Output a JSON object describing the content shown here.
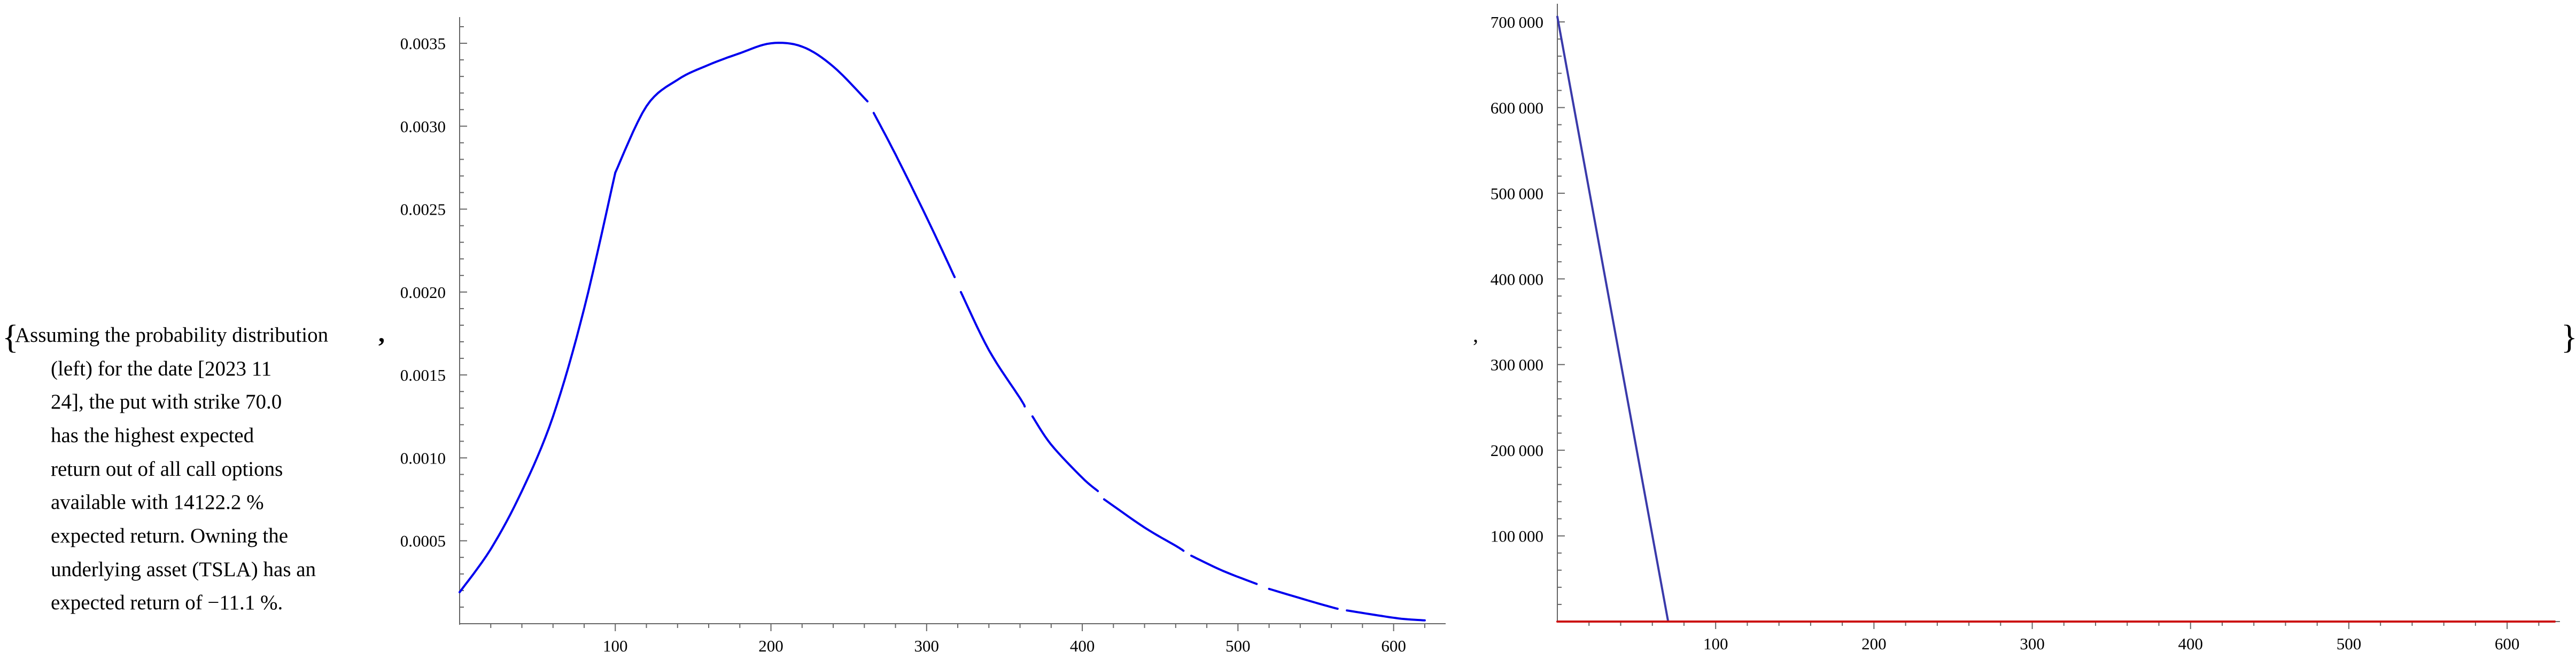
{
  "output": {
    "open_brace": "{",
    "close_brace": "}",
    "separator": ",",
    "description_lines": [
      "Assuming the probability distribution",
      "(left) for the date [2023 11",
      "24], the put with strike 70.0",
      "has the highest expected",
      "return out of all call options",
      "available with 14122.2 %",
      "expected return. Owning the",
      "underlying asset (TSLA) has an",
      "expected return of −11.1 %."
    ]
  },
  "chart_data": [
    {
      "type": "line",
      "title": "",
      "xlabel": "",
      "ylabel": "",
      "xlim": [
        0,
        630
      ],
      "ylim": [
        0,
        0.0036
      ],
      "x_ticks": [
        100,
        200,
        300,
        400,
        500,
        600
      ],
      "y_ticks": [
        0.0005,
        0.001,
        0.0015,
        0.002,
        0.0025,
        0.003,
        0.0035
      ],
      "y_tick_labels": [
        "0.0005",
        "0.0010",
        "0.0015",
        "0.0020",
        "0.0025",
        "0.0030",
        "0.0035"
      ],
      "grid": false,
      "line_color": "#0000ee",
      "series": [
        {
          "segments": [
            [
              [
                0,
                0.00019
              ],
              [
                20,
                0.00045
              ],
              [
                40,
                0.0008
              ],
              [
                60,
                0.00125
              ],
              [
                80,
                0.0019
              ],
              [
                100,
                0.00272
              ]
            ],
            [
              [
                100,
                0.00272
              ],
              [
                120,
                0.00312
              ],
              [
                140,
                0.00328
              ],
              [
                160,
                0.00337
              ],
              [
                180,
                0.00344
              ],
              [
                200,
                0.0035
              ],
              [
                220,
                0.00348
              ],
              [
                240,
                0.00336
              ],
              [
                262,
                0.00315
              ]
            ],
            [
              [
                266,
                0.00308
              ],
              [
                280,
                0.00283
              ],
              [
                300,
                0.00245
              ],
              [
                318,
                0.00209
              ]
            ],
            [
              [
                322,
                0.002
              ],
              [
                340,
                0.00165
              ],
              [
                360,
                0.00136
              ],
              [
                363,
                0.00131
              ]
            ],
            [
              [
                368,
                0.00125
              ],
              [
                380,
                0.00108
              ],
              [
                400,
                0.00088
              ],
              [
                410,
                0.0008
              ]
            ],
            [
              [
                414,
                0.00075
              ],
              [
                440,
                0.00058
              ],
              [
                460,
                0.00047
              ],
              [
                465,
                0.00044
              ]
            ],
            [
              [
                470,
                0.00041
              ],
              [
                490,
                0.00032
              ],
              [
                512,
                0.00024
              ]
            ],
            [
              [
                520,
                0.00021
              ],
              [
                545,
                0.00014
              ],
              [
                560,
                0.0001
              ],
              [
                564,
                9e-05
              ]
            ],
            [
              [
                570,
                8e-05
              ],
              [
                590,
                5e-05
              ],
              [
                605,
                3e-05
              ],
              [
                620,
                2e-05
              ]
            ]
          ]
        }
      ]
    },
    {
      "type": "line",
      "title": "",
      "xlabel": "",
      "ylabel": "",
      "xlim": [
        0,
        630
      ],
      "ylim": [
        0,
        710000
      ],
      "x_ticks": [
        100,
        200,
        300,
        400,
        500,
        600
      ],
      "y_ticks": [
        100000,
        200000,
        300000,
        400000,
        500000,
        600000,
        700000
      ],
      "y_tick_labels": [
        "100 000",
        "200 000",
        "300 000",
        "400 000",
        "500 000",
        "600 000",
        "700 000"
      ],
      "grid": false,
      "series": [
        {
          "color": "#3a3aaa",
          "points": [
            [
              0,
              706000
            ],
            [
              70,
              0
            ],
            [
              630,
              0
            ]
          ]
        },
        {
          "color": "#cc1111",
          "points": [
            [
              0,
              0
            ],
            [
              630,
              0
            ]
          ]
        }
      ]
    }
  ]
}
